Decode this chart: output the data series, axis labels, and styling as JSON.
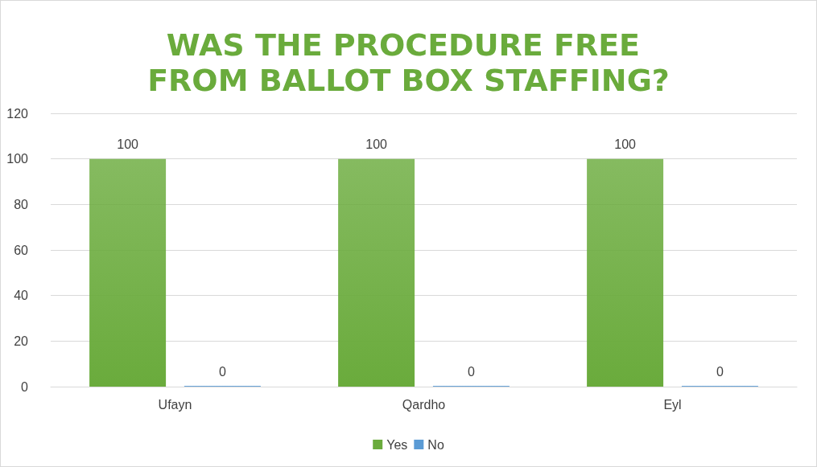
{
  "chart_data": {
    "type": "bar",
    "title": "WAS THE PROCEDURE FREE FROM BALLOT BOX STAFFING?",
    "categories": [
      "Ufayn",
      "Qardho",
      "Eyl"
    ],
    "series": [
      {
        "name": "Yes",
        "color": "#6aab3c",
        "values": [
          100,
          100,
          100
        ]
      },
      {
        "name": "No",
        "color": "#5b9bd5",
        "values": [
          0,
          0,
          0
        ]
      }
    ],
    "ylim": [
      0,
      120
    ],
    "yticks": [
      0,
      20,
      40,
      60,
      80,
      100,
      120
    ],
    "grid": "y",
    "legend": "bottom",
    "data_labels": true
  }
}
